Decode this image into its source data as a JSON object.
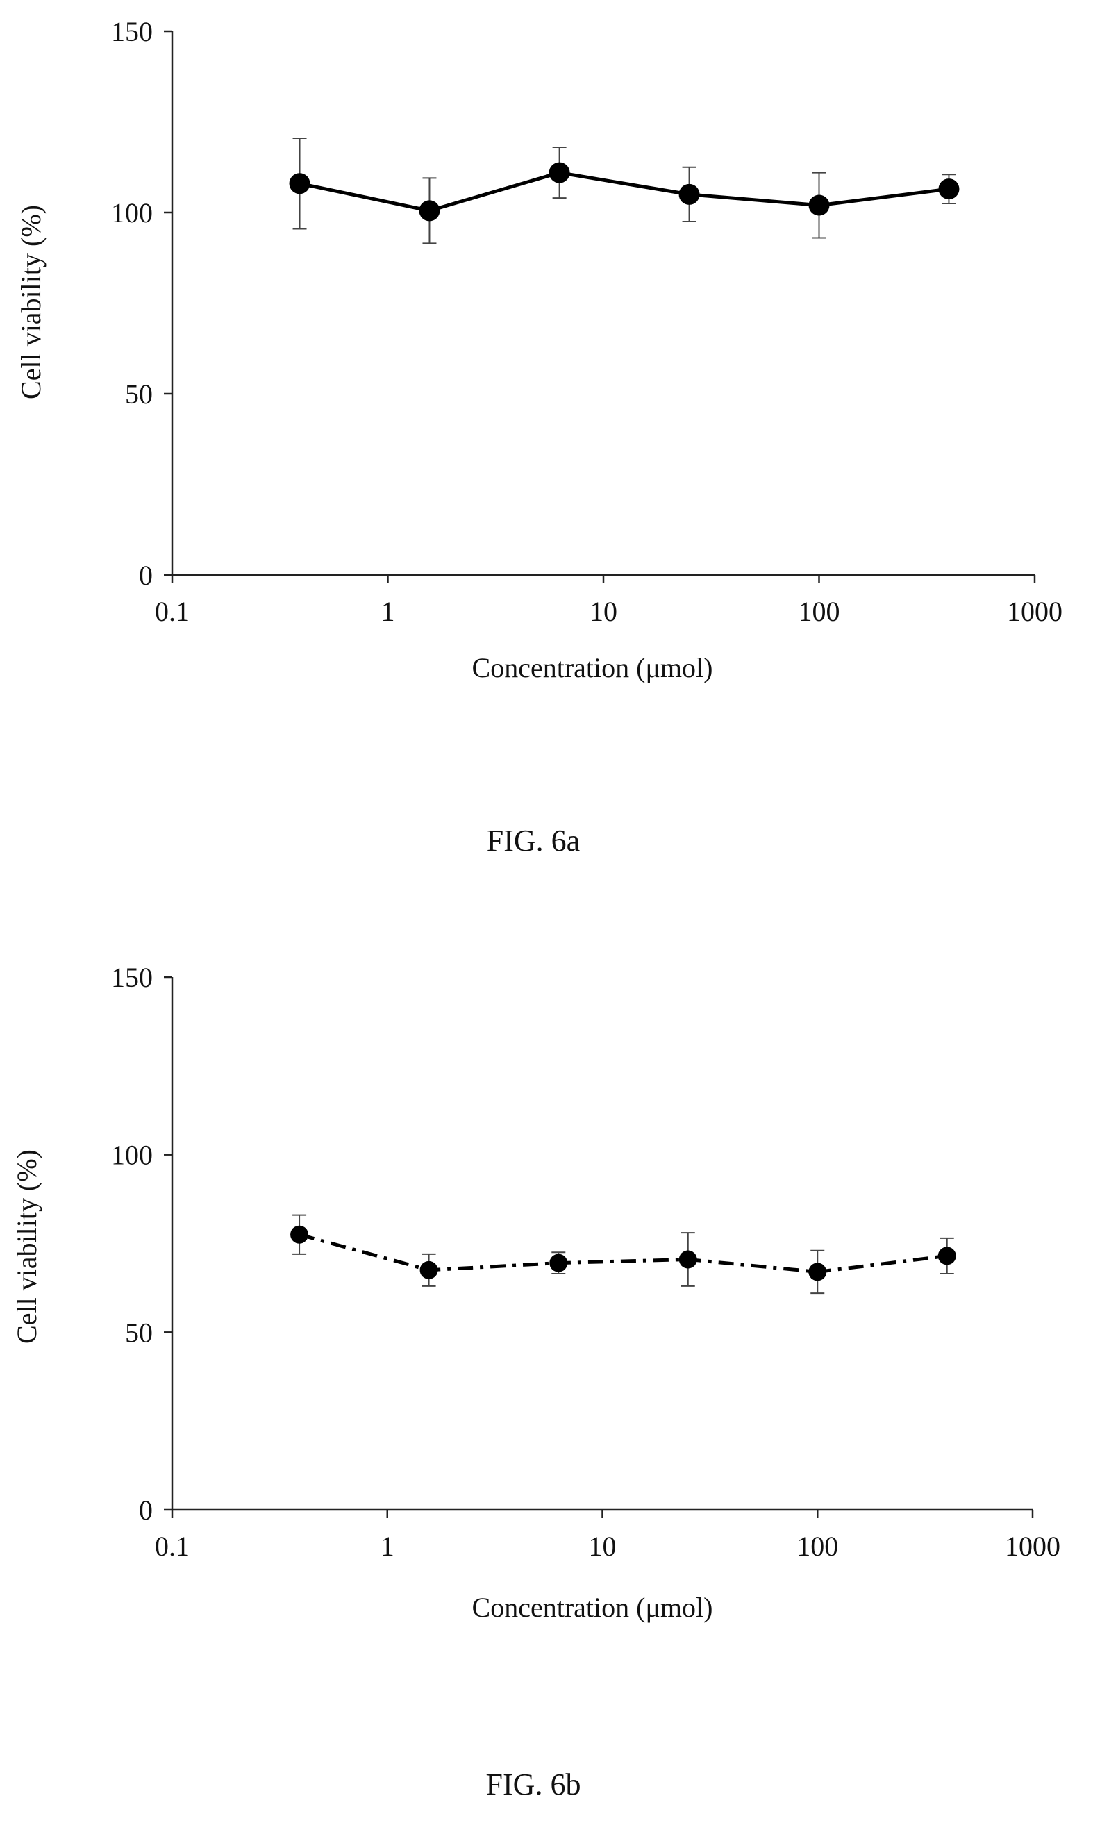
{
  "chart_data": [
    {
      "type": "line",
      "caption": "FIG. 6a",
      "xlabel": "Concentration (μmol)",
      "ylabel": "Cell viability (%)",
      "x_scale": "log",
      "xlim": [
        0.1,
        1000
      ],
      "ylim": [
        0,
        150
      ],
      "x_ticks": [
        "0.1",
        "1",
        "10",
        "100",
        "1000"
      ],
      "y_ticks": [
        "0",
        "50",
        "100",
        "150"
      ],
      "grid": false,
      "line_style": "solid",
      "series": [
        {
          "x": [
            0.39,
            1.56,
            6.25,
            25,
            100,
            400
          ],
          "y": [
            108,
            100.5,
            111,
            105,
            102,
            106.5
          ],
          "err": [
            12.5,
            9,
            7,
            7.5,
            9,
            4
          ]
        }
      ]
    },
    {
      "type": "line",
      "caption": "FIG. 6b",
      "xlabel": "Concentration (μmol)",
      "ylabel": "Cell viability (%)",
      "x_scale": "log",
      "xlim": [
        0.1,
        1000
      ],
      "ylim": [
        0,
        150
      ],
      "x_ticks": [
        "0.1",
        "1",
        "10",
        "100",
        "1000"
      ],
      "y_ticks": [
        "0",
        "50",
        "100",
        "150"
      ],
      "grid": false,
      "line_style": "dash-dot",
      "series": [
        {
          "x": [
            0.39,
            1.56,
            6.25,
            25,
            100,
            400
          ],
          "y": [
            77.5,
            67.5,
            69.5,
            70.5,
            67,
            71.5
          ],
          "err": [
            5.5,
            4.5,
            3,
            7.5,
            6,
            5
          ]
        }
      ]
    }
  ]
}
